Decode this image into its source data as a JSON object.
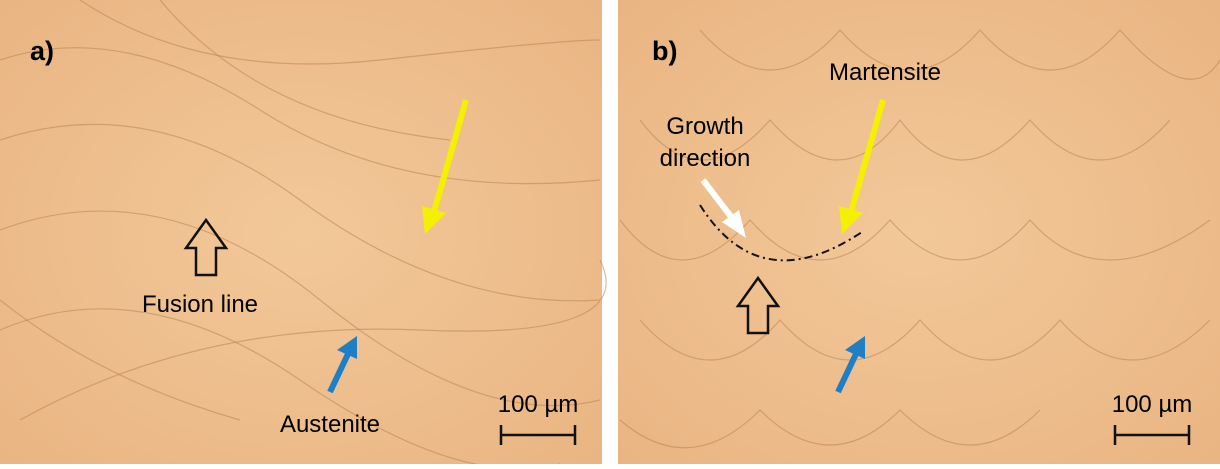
{
  "panels": [
    {
      "label": "a)",
      "fusion_line": "Fusion line",
      "austenite": "Austenite",
      "scale_bar": "100 µm"
    },
    {
      "label": "b)",
      "martensite": "Martensite",
      "growth_direction": [
        "Growth",
        "direction"
      ],
      "scale_bar": "100 µm"
    }
  ]
}
